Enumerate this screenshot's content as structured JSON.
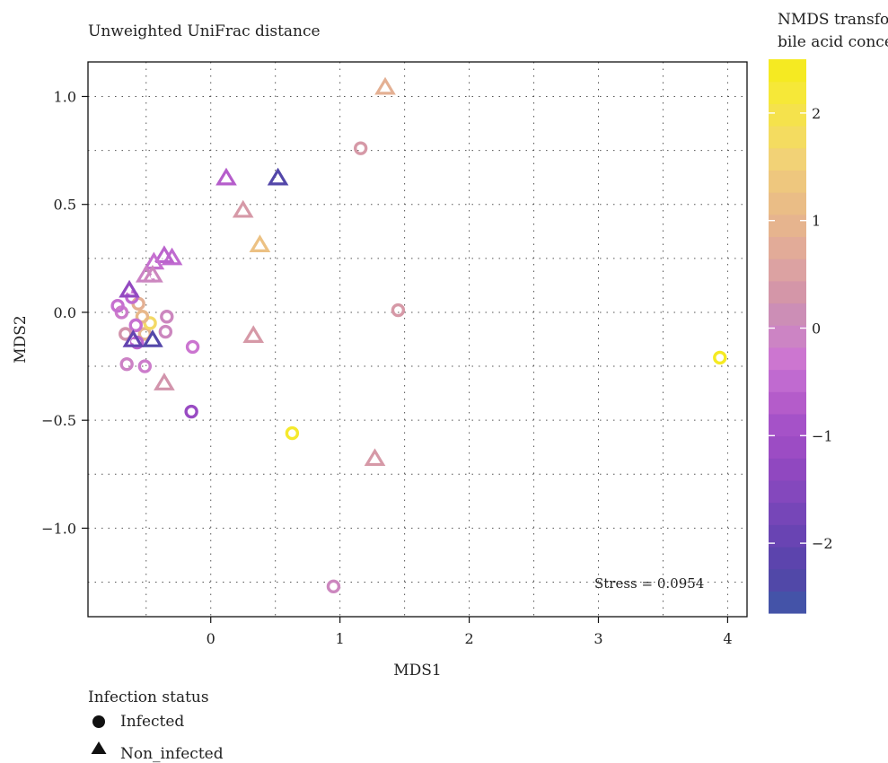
{
  "chart_data": {
    "type": "scatter",
    "title": "Unweighted UniFrac distance",
    "xlabel": "MDS1",
    "ylabel": "MDS2",
    "xlim": [
      -0.95,
      4.15
    ],
    "ylim": [
      -1.41,
      1.16
    ],
    "xticks": [
      0,
      1,
      2,
      3,
      4
    ],
    "yticks": [
      -1.0,
      -0.5,
      0.0,
      0.5,
      1.0
    ],
    "xtick_labels": [
      "0",
      "1",
      "2",
      "3",
      "4"
    ],
    "ytick_labels": [
      "−1.0",
      "−0.5",
      "0.0",
      "0.5",
      "1.0"
    ],
    "grid": true,
    "annotation": "Stress = 0.0954",
    "colorbar": {
      "title_line1": "NMDS transformed",
      "title_line2": "bile acid concentrations",
      "range": [
        -2.65,
        2.5
      ],
      "ticks": [
        -2,
        -1,
        0,
        1,
        2
      ],
      "tick_labels": [
        "−2",
        "−1",
        "0",
        "1",
        "2"
      ],
      "colors": [
        "#4453a8",
        "#5148a8",
        "#5c44ad",
        "#6944b3",
        "#7646b8",
        "#8448bd",
        "#9048c0",
        "#9c4cc4",
        "#a552c8",
        "#b45cca",
        "#c06ad0",
        "#cc76d0",
        "#cc84c4",
        "#cc8eb6",
        "#d496a8",
        "#dca2a2",
        "#e2ab98",
        "#e6b48e",
        "#eabd86",
        "#eec77e",
        "#f2d276",
        "#f4dc60",
        "#f5e24c",
        "#f6e838",
        "#f5ea22"
      ]
    },
    "legend": {
      "title": "Infection status",
      "entries": [
        {
          "label": "Infected",
          "shape": "circle"
        },
        {
          "label": "Non_infected",
          "shape": "triangle"
        }
      ],
      "placement": "bottom-left"
    },
    "series": [
      {
        "name": "Infected",
        "shape": "circle",
        "points": [
          {
            "x": 3.94,
            "y": -0.21,
            "c": 2.5
          },
          {
            "x": 0.63,
            "y": -0.56,
            "c": 2.4
          },
          {
            "x": 0.95,
            "y": -1.27,
            "c": 0.0
          },
          {
            "x": 1.16,
            "y": 0.76,
            "c": 0.4
          },
          {
            "x": 1.45,
            "y": 0.01,
            "c": 0.4
          },
          {
            "x": -0.15,
            "y": -0.46,
            "c": -1.2
          },
          {
            "x": -0.14,
            "y": -0.16,
            "c": -0.3
          },
          {
            "x": -0.34,
            "y": -0.02,
            "c": 0.0
          },
          {
            "x": -0.35,
            "y": -0.09,
            "c": 0.0
          },
          {
            "x": -0.51,
            "y": -0.25,
            "c": -0.2
          },
          {
            "x": -0.65,
            "y": -0.24,
            "c": -0.1
          },
          {
            "x": -0.51,
            "y": -0.1,
            "c": 1.0
          },
          {
            "x": -0.47,
            "y": -0.05,
            "c": 1.8
          },
          {
            "x": -0.53,
            "y": -0.02,
            "c": 1.1
          },
          {
            "x": -0.58,
            "y": -0.06,
            "c": -0.4
          },
          {
            "x": -0.66,
            "y": -0.1,
            "c": 0.3
          },
          {
            "x": -0.56,
            "y": 0.04,
            "c": 0.9
          },
          {
            "x": -0.69,
            "y": 0.0,
            "c": -0.2
          },
          {
            "x": -0.72,
            "y": 0.03,
            "c": -0.4
          },
          {
            "x": -0.61,
            "y": 0.07,
            "c": -0.5
          },
          {
            "x": -0.57,
            "y": -0.14,
            "c": -0.6
          }
        ]
      },
      {
        "name": "Non_infected",
        "shape": "triangle",
        "points": [
          {
            "x": 1.35,
            "y": 1.04,
            "c": 0.9
          },
          {
            "x": 0.52,
            "y": 0.62,
            "c": -2.4
          },
          {
            "x": 0.12,
            "y": 0.62,
            "c": -0.7
          },
          {
            "x": 0.25,
            "y": 0.47,
            "c": 0.4
          },
          {
            "x": 0.38,
            "y": 0.31,
            "c": 1.3
          },
          {
            "x": 0.33,
            "y": -0.11,
            "c": 0.4
          },
          {
            "x": 1.27,
            "y": -0.68,
            "c": 0.4
          },
          {
            "x": -0.36,
            "y": -0.33,
            "c": 0.3
          },
          {
            "x": -0.3,
            "y": 0.25,
            "c": -0.5
          },
          {
            "x": -0.36,
            "y": 0.26,
            "c": -0.6
          },
          {
            "x": -0.44,
            "y": 0.23,
            "c": -0.4
          },
          {
            "x": -0.5,
            "y": 0.17,
            "c": -0.1
          },
          {
            "x": -0.45,
            "y": 0.17,
            "c": 0.0
          },
          {
            "x": -0.63,
            "y": 0.1,
            "c": -1.3
          },
          {
            "x": -0.45,
            "y": -0.13,
            "c": -2.4
          },
          {
            "x": -0.6,
            "y": -0.13,
            "c": -2.1
          }
        ]
      }
    ]
  }
}
